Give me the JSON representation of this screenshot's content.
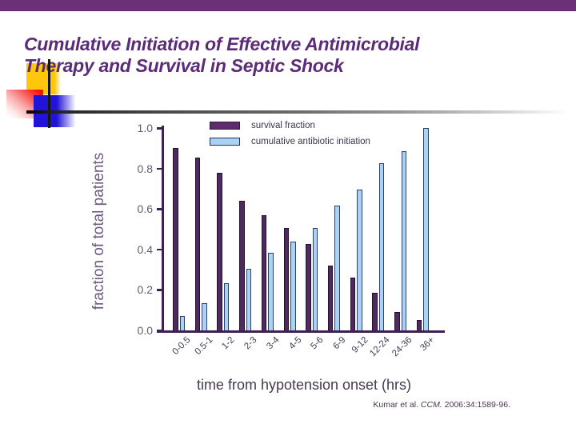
{
  "slide": {
    "title_line1": "Cumulative Initiation of Effective Antimicrobial",
    "title_line2": "Therapy and Survival in Septic Shock",
    "citation": {
      "authors": "Kumar et al. ",
      "journal": "CCM.",
      "rest": " 2006:34:1589-96."
    }
  },
  "colors": {
    "accent_bar": "#6A3179",
    "title_text": "#5B2B78",
    "axis": "#3E2152",
    "survival_bar": "#4E2A5E",
    "antibiotic_bar": "#A9D2F4"
  },
  "chart_data": {
    "type": "bar",
    "title": "",
    "categories": [
      "0-0.5",
      "0.5-1",
      "1-2",
      "2-3",
      "3-4",
      "4-5",
      "5-6",
      "6-9",
      "9-12",
      "12-24",
      "24-36",
      "36+"
    ],
    "series": [
      {
        "name": "survival fraction",
        "color": "#4E2A5E",
        "border_color": "#241132",
        "values": [
          0.9,
          0.855,
          0.78,
          0.64,
          0.57,
          0.505,
          0.425,
          0.32,
          0.26,
          0.185,
          0.09,
          0.05
        ]
      },
      {
        "name": "cumulative antibiotic initiation",
        "color": "#A9D2F4",
        "border_color": "#2F3F6E",
        "values": [
          0.07,
          0.135,
          0.235,
          0.305,
          0.385,
          0.44,
          0.505,
          0.615,
          0.695,
          0.825,
          0.885,
          1.0
        ]
      }
    ],
    "xlabel": "time from hypotension onset (hrs)",
    "ylabel": "fraction of total patients",
    "ylim": [
      0.0,
      1.0
    ],
    "yticks": [
      0.0,
      0.2,
      0.4,
      0.6,
      0.8,
      1.0
    ],
    "grid": false,
    "legend_position": "top-left-inside"
  }
}
